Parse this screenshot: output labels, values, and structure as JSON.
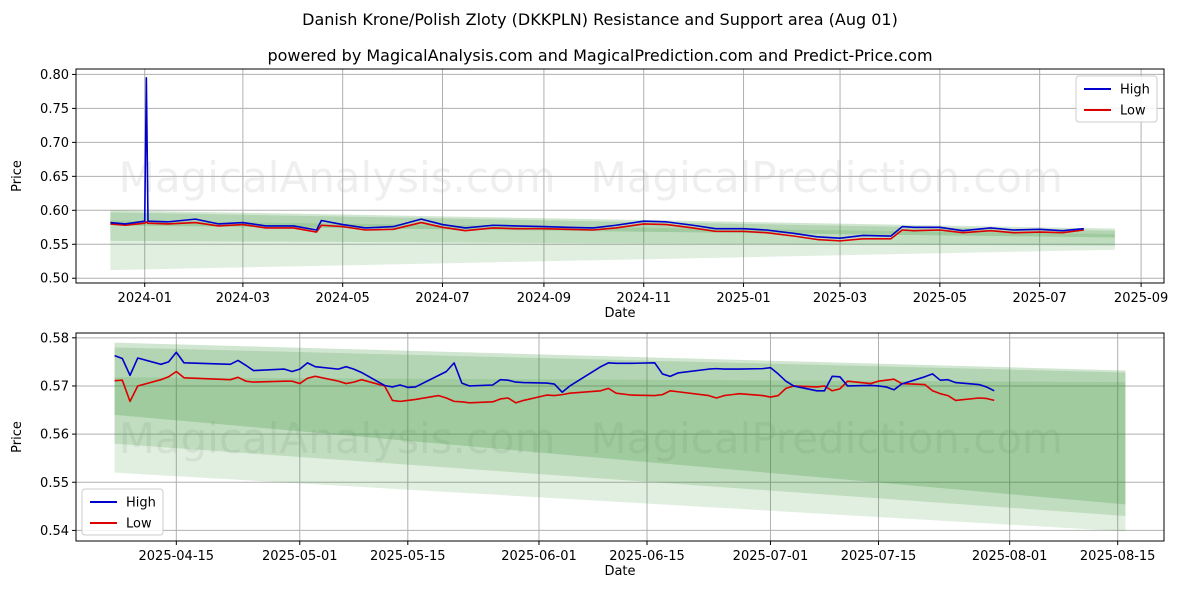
{
  "title": "Danish Krone/Polish Zloty (DKKPLN) Resistance and Support area (Aug 01)",
  "subtitle": "powered by MagicalAnalysis.com and MagicalPrediction.com and Predict-Price.com",
  "watermarks": [
    "MagicalAnalysis.com",
    "MagicalPrediction.com"
  ],
  "colors": {
    "high": "#0000cc",
    "low": "#dd0000",
    "band": "#2e8b2e",
    "grid": "#b0b0b0"
  },
  "chart_data": [
    {
      "type": "line",
      "xlabel": "Date",
      "ylabel": "Price",
      "x_ticks": [
        "2024-01",
        "2024-03",
        "2024-05",
        "2024-07",
        "2024-09",
        "2024-11",
        "2025-01",
        "2025-03",
        "2025-05",
        "2025-07",
        "2025-09"
      ],
      "y_ticks": [
        "0.50",
        "0.55",
        "0.60",
        "0.65",
        "0.70",
        "0.75",
        "0.80"
      ],
      "xlim": [
        "2023-11-20",
        "2025-09-15"
      ],
      "ylim": [
        0.493,
        0.808
      ],
      "grid": true,
      "legend": "top-right",
      "legend_entries": [
        "High",
        "Low"
      ],
      "series": [
        {
          "name": "High",
          "x": [
            "2023-12-11",
            "2023-12-20",
            "2024-01-01",
            "2024-01-02",
            "2024-01-03",
            "2024-01-15",
            "2024-02-01",
            "2024-02-15",
            "2024-03-01",
            "2024-03-15",
            "2024-04-01",
            "2024-04-15",
            "2024-04-18",
            "2024-05-01",
            "2024-05-15",
            "2024-06-01",
            "2024-06-18",
            "2024-07-01",
            "2024-07-15",
            "2024-08-01",
            "2024-08-15",
            "2024-09-01",
            "2024-09-15",
            "2024-10-01",
            "2024-10-15",
            "2024-11-01",
            "2024-11-15",
            "2024-12-01",
            "2024-12-15",
            "2025-01-01",
            "2025-01-15",
            "2025-02-01",
            "2025-02-15",
            "2025-03-01",
            "2025-03-15",
            "2025-04-01",
            "2025-04-08",
            "2025-04-15",
            "2025-05-01",
            "2025-05-15",
            "2025-06-01",
            "2025-06-15",
            "2025-07-01",
            "2025-07-15",
            "2025-07-28"
          ],
          "values": [
            0.582,
            0.58,
            0.584,
            0.795,
            0.584,
            0.583,
            0.587,
            0.58,
            0.582,
            0.577,
            0.577,
            0.571,
            0.585,
            0.579,
            0.574,
            0.576,
            0.587,
            0.579,
            0.574,
            0.578,
            0.577,
            0.576,
            0.575,
            0.574,
            0.578,
            0.584,
            0.583,
            0.578,
            0.573,
            0.573,
            0.571,
            0.566,
            0.561,
            0.559,
            0.563,
            0.562,
            0.576,
            0.575,
            0.575,
            0.57,
            0.574,
            0.571,
            0.572,
            0.57,
            0.573
          ]
        },
        {
          "name": "Low",
          "x": [
            "2023-12-11",
            "2023-12-20",
            "2024-01-01",
            "2024-01-02",
            "2024-01-03",
            "2024-01-15",
            "2024-02-01",
            "2024-02-15",
            "2024-03-01",
            "2024-03-15",
            "2024-04-01",
            "2024-04-15",
            "2024-04-18",
            "2024-05-01",
            "2024-05-15",
            "2024-06-01",
            "2024-06-18",
            "2024-07-01",
            "2024-07-15",
            "2024-08-01",
            "2024-08-15",
            "2024-09-01",
            "2024-09-15",
            "2024-10-01",
            "2024-10-15",
            "2024-11-01",
            "2024-11-15",
            "2024-12-01",
            "2024-12-15",
            "2025-01-01",
            "2025-01-15",
            "2025-02-01",
            "2025-02-15",
            "2025-03-01",
            "2025-03-15",
            "2025-04-01",
            "2025-04-08",
            "2025-04-15",
            "2025-05-01",
            "2025-05-15",
            "2025-06-01",
            "2025-06-15",
            "2025-07-01",
            "2025-07-15",
            "2025-07-28"
          ],
          "values": [
            0.58,
            0.578,
            0.581,
            0.583,
            0.581,
            0.58,
            0.582,
            0.577,
            0.579,
            0.574,
            0.574,
            0.568,
            0.578,
            0.576,
            0.571,
            0.572,
            0.582,
            0.575,
            0.57,
            0.574,
            0.573,
            0.573,
            0.572,
            0.571,
            0.574,
            0.58,
            0.579,
            0.574,
            0.569,
            0.569,
            0.567,
            0.562,
            0.557,
            0.555,
            0.558,
            0.558,
            0.571,
            0.57,
            0.571,
            0.567,
            0.57,
            0.567,
            0.568,
            0.567,
            0.571
          ]
        }
      ],
      "bands": [
        {
          "x": [
            "2023-12-11",
            "2025-08-16"
          ],
          "upper": [
            0.6,
            0.573
          ],
          "lower": [
            0.578,
            0.56
          ]
        },
        {
          "x": [
            "2023-12-11",
            "2025-08-16"
          ],
          "upper": [
            0.597,
            0.57
          ],
          "lower": [
            0.555,
            0.548
          ]
        },
        {
          "x": [
            "2023-12-11",
            "2025-08-16"
          ],
          "upper": [
            0.585,
            0.565
          ],
          "lower": [
            0.512,
            0.542
          ]
        }
      ]
    },
    {
      "type": "line",
      "xlabel": "Date",
      "ylabel": "Price",
      "x_ticks": [
        "2025-04-15",
        "2025-05-01",
        "2025-05-15",
        "2025-06-01",
        "2025-06-15",
        "2025-07-01",
        "2025-07-15",
        "2025-08-01",
        "2025-08-15"
      ],
      "y_ticks": [
        "0.54",
        "0.55",
        "0.56",
        "0.57",
        "0.58"
      ],
      "xlim": [
        "2025-04-02",
        "2025-08-21"
      ],
      "ylim": [
        0.5378,
        0.581
      ],
      "grid": true,
      "legend": "bottom-left",
      "legend_entries": [
        "High",
        "Low"
      ],
      "series": [
        {
          "name": "High",
          "x": [
            "2025-04-07",
            "2025-04-08",
            "2025-04-09",
            "2025-04-10",
            "2025-04-13",
            "2025-04-14",
            "2025-04-15",
            "2025-04-16",
            "2025-04-22",
            "2025-04-23",
            "2025-04-24",
            "2025-04-25",
            "2025-04-29",
            "2025-04-30",
            "2025-05-01",
            "2025-05-02",
            "2025-05-03",
            "2025-05-06",
            "2025-05-07",
            "2025-05-08",
            "2025-05-09",
            "2025-05-12",
            "2025-05-13",
            "2025-05-14",
            "2025-05-15",
            "2025-05-16",
            "2025-05-19",
            "2025-05-20",
            "2025-05-21",
            "2025-05-22",
            "2025-05-23",
            "2025-05-26",
            "2025-05-27",
            "2025-05-28",
            "2025-05-29",
            "2025-05-30",
            "2025-06-02",
            "2025-06-03",
            "2025-06-04",
            "2025-06-05",
            "2025-06-09",
            "2025-06-10",
            "2025-06-11",
            "2025-06-13",
            "2025-06-16",
            "2025-06-17",
            "2025-06-18",
            "2025-06-19",
            "2025-06-23",
            "2025-06-24",
            "2025-06-25",
            "2025-06-26",
            "2025-06-27",
            "2025-06-30",
            "2025-07-01",
            "2025-07-02",
            "2025-07-03",
            "2025-07-04",
            "2025-07-07",
            "2025-07-08",
            "2025-07-09",
            "2025-07-10",
            "2025-07-11",
            "2025-07-14",
            "2025-07-15",
            "2025-07-16",
            "2025-07-17",
            "2025-07-18",
            "2025-07-21",
            "2025-07-22",
            "2025-07-23",
            "2025-07-24",
            "2025-07-25",
            "2025-07-28",
            "2025-07-29",
            "2025-07-30"
          ],
          "values": [
            0.5763,
            0.5757,
            0.5722,
            0.5758,
            0.5745,
            0.575,
            0.577,
            0.5748,
            0.5745,
            0.5753,
            0.5743,
            0.5732,
            0.5735,
            0.573,
            0.5735,
            0.5748,
            0.574,
            0.5735,
            0.574,
            0.5735,
            0.5728,
            0.5701,
            0.5698,
            0.5702,
            0.5697,
            0.5698,
            0.5722,
            0.573,
            0.5748,
            0.5706,
            0.57,
            0.5702,
            0.5713,
            0.5712,
            0.5708,
            0.5707,
            0.5706,
            0.5704,
            0.5687,
            0.57,
            0.574,
            0.5748,
            0.5747,
            0.5747,
            0.5748,
            0.5725,
            0.572,
            0.5727,
            0.5735,
            0.5736,
            0.5735,
            0.5735,
            0.5735,
            0.5736,
            0.5738,
            0.5725,
            0.571,
            0.57,
            0.569,
            0.569,
            0.572,
            0.5719,
            0.57,
            0.5701,
            0.57,
            0.5698,
            0.5692,
            0.5704,
            0.5719,
            0.5725,
            0.5712,
            0.5713,
            0.5707,
            0.5703,
            0.5698,
            0.569
          ]
        },
        {
          "name": "Low",
          "x": [
            "2025-04-07",
            "2025-04-08",
            "2025-04-09",
            "2025-04-10",
            "2025-04-13",
            "2025-04-14",
            "2025-04-15",
            "2025-04-16",
            "2025-04-22",
            "2025-04-23",
            "2025-04-24",
            "2025-04-25",
            "2025-04-29",
            "2025-04-30",
            "2025-05-01",
            "2025-05-02",
            "2025-05-03",
            "2025-05-06",
            "2025-05-07",
            "2025-05-08",
            "2025-05-09",
            "2025-05-12",
            "2025-05-13",
            "2025-05-14",
            "2025-05-15",
            "2025-05-16",
            "2025-05-19",
            "2025-05-20",
            "2025-05-21",
            "2025-05-22",
            "2025-05-23",
            "2025-05-26",
            "2025-05-27",
            "2025-05-28",
            "2025-05-29",
            "2025-05-30",
            "2025-06-02",
            "2025-06-03",
            "2025-06-04",
            "2025-06-05",
            "2025-06-09",
            "2025-06-10",
            "2025-06-11",
            "2025-06-13",
            "2025-06-16",
            "2025-06-17",
            "2025-06-18",
            "2025-06-19",
            "2025-06-23",
            "2025-06-24",
            "2025-06-25",
            "2025-06-26",
            "2025-06-27",
            "2025-06-30",
            "2025-07-01",
            "2025-07-02",
            "2025-07-03",
            "2025-07-04",
            "2025-07-07",
            "2025-07-08",
            "2025-07-09",
            "2025-07-10",
            "2025-07-11",
            "2025-07-14",
            "2025-07-15",
            "2025-07-16",
            "2025-07-17",
            "2025-07-18",
            "2025-07-21",
            "2025-07-22",
            "2025-07-23",
            "2025-07-24",
            "2025-07-25",
            "2025-07-28",
            "2025-07-29",
            "2025-07-30"
          ],
          "values": [
            0.5711,
            0.5712,
            0.5668,
            0.57,
            0.5713,
            0.5719,
            0.573,
            0.5717,
            0.5713,
            0.5718,
            0.571,
            0.5708,
            0.571,
            0.571,
            0.5705,
            0.5716,
            0.572,
            0.571,
            0.5705,
            0.5708,
            0.5713,
            0.57,
            0.567,
            0.5668,
            0.567,
            0.5672,
            0.568,
            0.5675,
            0.5668,
            0.5667,
            0.5665,
            0.5667,
            0.5673,
            0.5675,
            0.5665,
            0.567,
            0.5681,
            0.568,
            0.5682,
            0.5685,
            0.569,
            0.5695,
            0.5685,
            0.5681,
            0.568,
            0.5682,
            0.569,
            0.5688,
            0.568,
            0.5675,
            0.568,
            0.5682,
            0.5684,
            0.568,
            0.5677,
            0.568,
            0.5695,
            0.57,
            0.5698,
            0.57,
            0.569,
            0.5694,
            0.571,
            0.5705,
            0.571,
            0.5712,
            0.5714,
            0.5705,
            0.5703,
            0.569,
            0.5684,
            0.568,
            0.567,
            0.5675,
            0.5674,
            0.567
          ]
        }
      ],
      "bands": [
        {
          "x": [
            "2025-04-07",
            "2025-08-16"
          ],
          "upper": [
            0.579,
            0.5732
          ],
          "lower": [
            0.564,
            0.5454
          ]
        },
        {
          "x": [
            "2025-04-07",
            "2025-08-16"
          ],
          "upper": [
            0.578,
            0.5728
          ],
          "lower": [
            0.558,
            0.543
          ]
        },
        {
          "x": [
            "2025-04-07",
            "2025-08-16"
          ],
          "upper": [
            0.5718,
            0.5708
          ],
          "lower": [
            0.552,
            0.5398
          ]
        }
      ]
    }
  ]
}
